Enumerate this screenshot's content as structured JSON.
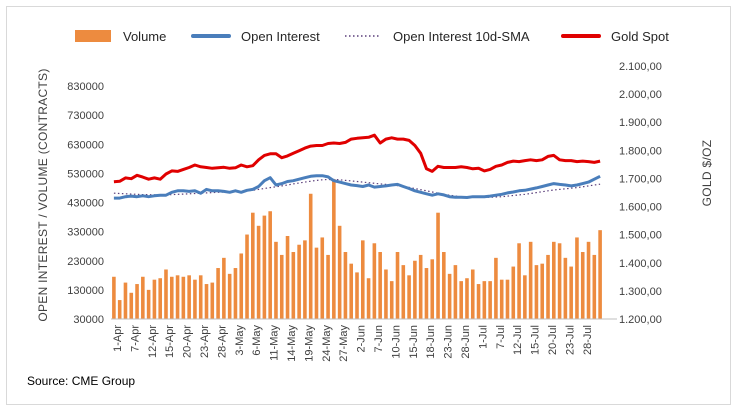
{
  "chart_data": {
    "type": "bar+line",
    "source": "Source: CME Group",
    "legend": [
      {
        "label": "Volume",
        "style": "bar",
        "color": "#ED8B3F"
      },
      {
        "label": "Open Interest",
        "style": "line",
        "color": "#4A7EBB"
      },
      {
        "label": "Open Interest 10d-SMA",
        "style": "dotted",
        "color": "#5A3E7A"
      },
      {
        "label": "Gold Spot",
        "style": "line",
        "color": "#E00000"
      }
    ],
    "y_left": {
      "label": "OPEN INTEREST / VOLUME (CONTRACTS)",
      "min": 30000,
      "max": 830000,
      "ticks": [
        "830000",
        "730000",
        "630000",
        "530000",
        "430000",
        "330000",
        "230000",
        "130000",
        "30000"
      ]
    },
    "y_right": {
      "label": "GOLD $/OZ",
      "min": 1200,
      "max": 2100,
      "ticks": [
        "2.100,00",
        "2.000,00",
        "1.900,00",
        "1.800,00",
        "1.700,00",
        "1.600,00",
        "1.500,00",
        "1.400,00",
        "1.300,00",
        "1.200,00"
      ]
    },
    "x_tick_labels": [
      "1-Apr",
      "7-Apr",
      "12-Apr",
      "15-Apr",
      "20-Apr",
      "23-Apr",
      "28-Apr",
      "3-May",
      "6-May",
      "11-May",
      "14-May",
      "19-May",
      "24-May",
      "27-May",
      "2-Jun",
      "7-Jun",
      "10-Jun",
      "15-Jun",
      "18-Jun",
      "23-Jun",
      "28-Jun",
      "1-Jul",
      "7-Jul",
      "12-Jul",
      "15-Jul",
      "20-Jul",
      "23-Jul",
      "28-Jul"
    ],
    "x_slots": 85,
    "series": [
      {
        "name": "Volume",
        "values": [
          175000,
          95000,
          155000,
          120000,
          150000,
          175000,
          130000,
          165000,
          170000,
          200000,
          175000,
          180000,
          175000,
          180000,
          165000,
          180000,
          150000,
          155000,
          205000,
          240000,
          185000,
          205000,
          255000,
          320000,
          395000,
          350000,
          385000,
          400000,
          295000,
          250000,
          315000,
          260000,
          285000,
          300000,
          460000,
          275000,
          310000,
          250000,
          510000,
          350000,
          260000,
          220000,
          190000,
          300000,
          170000,
          290000,
          260000,
          200000,
          160000,
          260000,
          215000,
          180000,
          230000,
          250000,
          205000,
          235000,
          395000,
          260000,
          185000,
          215000,
          160000,
          170000,
          200000,
          150000,
          160000,
          160000,
          240000,
          165000,
          165000,
          210000,
          290000,
          180000,
          295000,
          215000,
          220000,
          250000,
          295000,
          290000,
          240000,
          210000,
          310000,
          260000,
          295000,
          250000,
          335000
        ]
      },
      {
        "name": "Open Interest",
        "values": [
          445000,
          445000,
          450000,
          452000,
          450000,
          453000,
          450000,
          453000,
          455000,
          455000,
          465000,
          470000,
          470000,
          468000,
          470000,
          462000,
          475000,
          470000,
          470000,
          468000,
          465000,
          470000,
          465000,
          472000,
          475000,
          485000,
          505000,
          515000,
          490000,
          495000,
          502000,
          505000,
          510000,
          515000,
          520000,
          522000,
          522000,
          518000,
          505000,
          500000,
          495000,
          490000,
          488000,
          485000,
          490000,
          483000,
          485000,
          487000,
          490000,
          492000,
          485000,
          478000,
          470000,
          465000,
          460000,
          455000,
          460000,
          456000,
          450000,
          448000,
          448000,
          447000,
          450000,
          450000,
          450000,
          452000,
          455000,
          458000,
          463000,
          466000,
          470000,
          472000,
          476000,
          480000,
          485000,
          490000,
          495000,
          492000,
          490000,
          487000,
          490000,
          495000,
          500000,
          510000,
          520000
        ]
      },
      {
        "name": "Open Interest 10d-SMA",
        "values": [
          462000,
          461000,
          460000,
          459000,
          458000,
          457000,
          457000,
          456000,
          456000,
          456000,
          457000,
          458000,
          459000,
          460000,
          461000,
          462000,
          463000,
          464000,
          465000,
          466000,
          467000,
          468000,
          469000,
          470000,
          472000,
          475000,
          478000,
          481000,
          484000,
          487000,
          490000,
          494000,
          497000,
          500000,
          503000,
          506000,
          508000,
          509000,
          509000,
          508000,
          506000,
          504000,
          502000,
          500000,
          498000,
          496000,
          494000,
          492000,
          490000,
          488000,
          485000,
          482000,
          478000,
          474000,
          470000,
          466000,
          462000,
          458000,
          455000,
          452000,
          450000,
          449000,
          448000,
          448000,
          448000,
          448000,
          449000,
          450000,
          452000,
          454000,
          456000,
          458000,
          461000,
          464000,
          467000,
          470000,
          473000,
          475000,
          477000,
          479000,
          481000,
          484000,
          487000,
          490000,
          493000
        ]
      },
      {
        "name": "Gold Spot",
        "values": [
          1730,
          1732,
          1745,
          1742,
          1755,
          1748,
          1740,
          1745,
          1740,
          1760,
          1772,
          1770,
          1778,
          1785,
          1795,
          1788,
          1785,
          1782,
          1784,
          1786,
          1782,
          1784,
          1795,
          1788,
          1792,
          1815,
          1832,
          1838,
          1838,
          1823,
          1830,
          1840,
          1850,
          1860,
          1868,
          1870,
          1870,
          1878,
          1880,
          1878,
          1882,
          1895,
          1898,
          1900,
          1902,
          1910,
          1880,
          1895,
          1900,
          1895,
          1895,
          1890,
          1870,
          1840,
          1780,
          1770,
          1790,
          1785,
          1785,
          1785,
          1788,
          1785,
          1780,
          1782,
          1772,
          1778,
          1790,
          1795,
          1805,
          1810,
          1808,
          1812,
          1815,
          1812,
          1815,
          1828,
          1832,
          1815,
          1812,
          1812,
          1808,
          1810,
          1808,
          1805,
          1810
        ]
      }
    ]
  }
}
